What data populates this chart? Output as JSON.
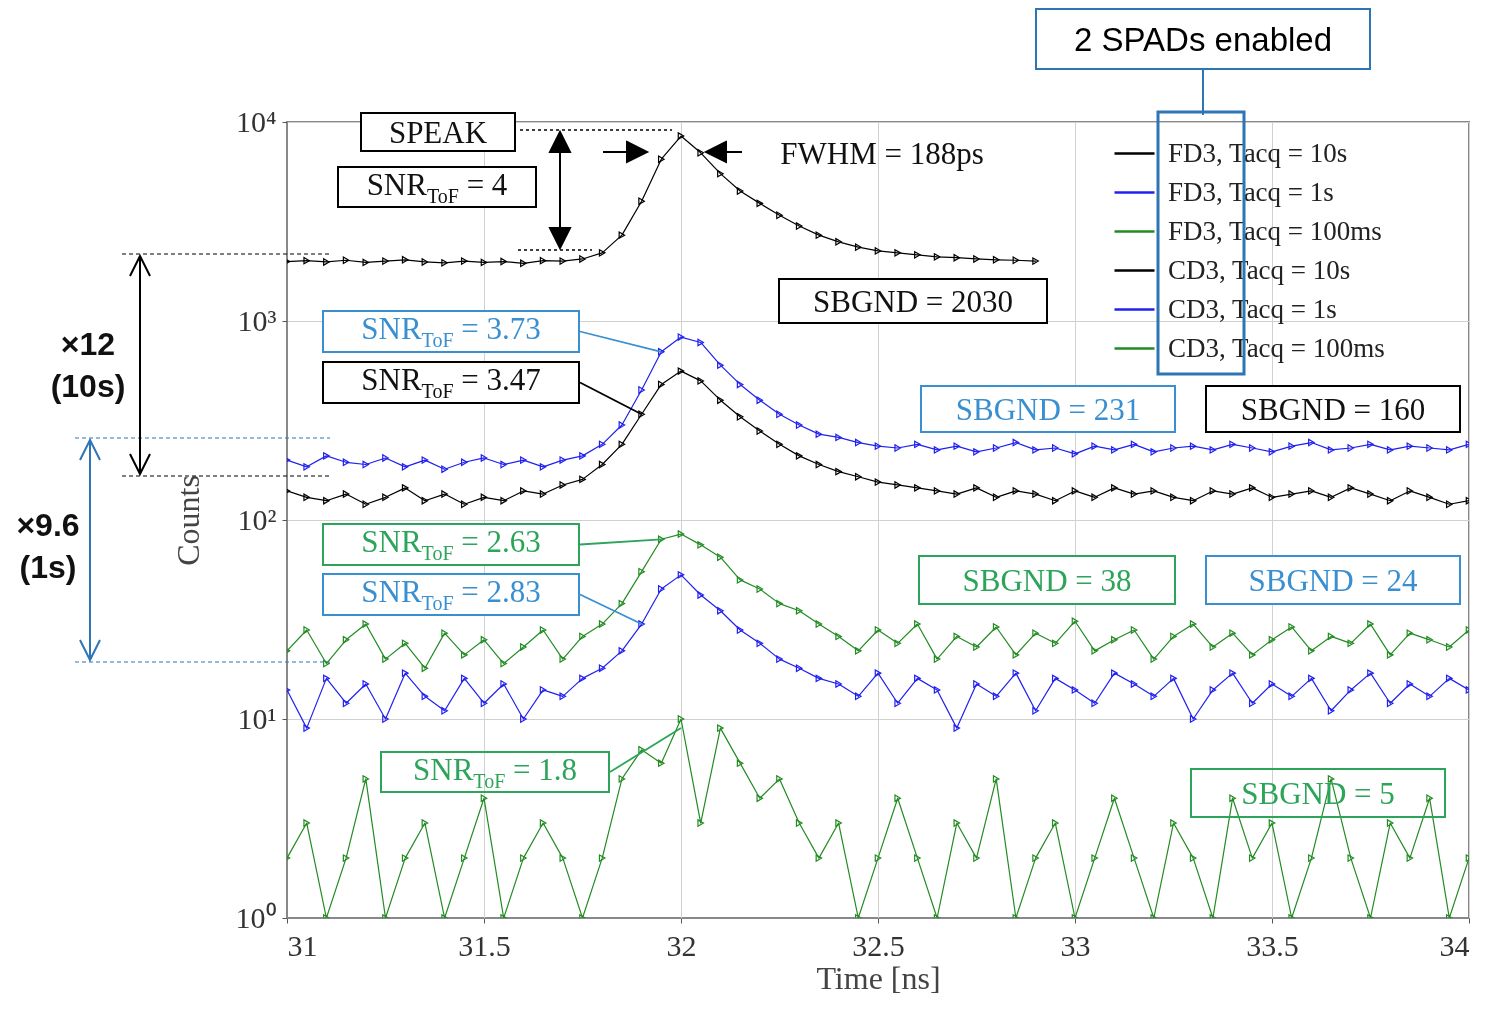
{
  "chart_data": {
    "type": "line",
    "xlabel": "Time [ns]",
    "ylabel": "Counts",
    "log": true,
    "grid": true,
    "legend": "top right",
    "marker": "triangle",
    "line_style": "solid",
    "xlim": [
      31,
      34
    ],
    "xticks": [
      31,
      31.5,
      32,
      32.5,
      33,
      33.5,
      34
    ],
    "ylim": [
      1,
      10000
    ],
    "yticks": [
      {
        "value": 1,
        "label": "10⁰"
      },
      {
        "value": 10,
        "label": "10¹"
      },
      {
        "value": 100,
        "label": "10²"
      },
      {
        "value": 1000,
        "label": "10³"
      },
      {
        "value": 10000,
        "label": "10⁴"
      }
    ],
    "x": [
      31,
      31.05,
      31.1,
      31.15,
      31.2,
      31.25,
      31.3,
      31.35,
      31.4,
      31.45,
      31.5,
      31.55,
      31.6,
      31.65,
      31.7,
      31.75,
      31.8,
      31.85,
      31.9,
      31.95,
      32,
      32.05,
      32.1,
      32.15,
      32.2,
      32.25,
      32.3,
      32.35,
      32.4,
      32.45,
      32.5,
      32.55,
      32.6,
      32.65,
      32.7,
      32.75,
      32.8,
      32.85,
      32.9,
      32.95,
      33,
      33.05,
      33.1,
      33.15,
      33.2,
      33.25,
      33.3,
      33.35,
      33.4,
      33.45,
      33.5,
      33.55,
      33.6,
      33.65,
      33.7,
      33.75,
      33.8,
      33.85,
      33.9,
      33.95,
      34
    ],
    "series": [
      {
        "name": "FD3, Tacq = 10s",
        "color": "#000000",
        "x": [
          31,
          31.05,
          31.1,
          31.15,
          31.2,
          31.25,
          31.3,
          31.35,
          31.4,
          31.45,
          31.5,
          31.55,
          31.6,
          31.65,
          31.7,
          31.75,
          31.8,
          31.85,
          31.9,
          31.95,
          32,
          32.05,
          32.1,
          32.15,
          32.2,
          32.25,
          32.3,
          32.35,
          32.4,
          32.45,
          32.5,
          32.55,
          32.6,
          32.65,
          32.7,
          32.75,
          32.8,
          32.85,
          32.9
        ],
        "values": [
          1990,
          2010,
          1980,
          2020,
          1970,
          2000,
          2030,
          1980,
          1960,
          2000,
          1970,
          1990,
          1950,
          2010,
          2000,
          2050,
          2200,
          2700,
          4000,
          6500,
          8500,
          7000,
          5500,
          4500,
          3900,
          3400,
          3000,
          2700,
          2500,
          2350,
          2250,
          2200,
          2150,
          2100,
          2080,
          2050,
          2030,
          2020,
          2000
        ]
      },
      {
        "name": "FD3, Tacq = 1s",
        "color": "#2020f0",
        "values": [
          200,
          185,
          210,
          195,
          190,
          205,
          185,
          200,
          180,
          195,
          205,
          190,
          200,
          185,
          200,
          210,
          240,
          300,
          450,
          700,
          830,
          780,
          600,
          480,
          400,
          340,
          300,
          270,
          260,
          245,
          235,
          230,
          240,
          225,
          235,
          220,
          230,
          245,
          225,
          230,
          215,
          235,
          225,
          240,
          220,
          230,
          235,
          225,
          240,
          230,
          220,
          235,
          245,
          225,
          230,
          240,
          225,
          235,
          230,
          225,
          240
        ]
      },
      {
        "name": "FD3, Tacq = 100ms",
        "color": "#228b22",
        "values": [
          22,
          28,
          19,
          25,
          30,
          20,
          24,
          18,
          27,
          21,
          25,
          19,
          23,
          28,
          20,
          26,
          30,
          38,
          55,
          80,
          85,
          75,
          65,
          50,
          45,
          38,
          35,
          30,
          26,
          22,
          28,
          24,
          30,
          20,
          26,
          23,
          29,
          21,
          27,
          24,
          31,
          22,
          25,
          28,
          20,
          26,
          30,
          23,
          27,
          21,
          25,
          29,
          22,
          26,
          24,
          30,
          21,
          27,
          25,
          23,
          28
        ]
      },
      {
        "name": "CD3, Tacq = 10s",
        "color": "#000000",
        "values": [
          140,
          130,
          125,
          135,
          120,
          130,
          145,
          125,
          135,
          120,
          130,
          125,
          140,
          135,
          150,
          160,
          190,
          240,
          340,
          480,
          560,
          500,
          400,
          330,
          280,
          240,
          210,
          190,
          175,
          165,
          155,
          150,
          145,
          140,
          135,
          145,
          130,
          140,
          135,
          125,
          140,
          130,
          145,
          135,
          140,
          130,
          125,
          140,
          135,
          145,
          130,
          135,
          140,
          130,
          145,
          135,
          125,
          140,
          130,
          120,
          125
        ]
      },
      {
        "name": "CD3, Tacq = 1s",
        "color": "#2020f0",
        "values": [
          14,
          9,
          16,
          12,
          15,
          10,
          17,
          13,
          11,
          16,
          12,
          15,
          10,
          14,
          13,
          16,
          18,
          22,
          30,
          45,
          53,
          42,
          35,
          28,
          24,
          20,
          18,
          16,
          15,
          13,
          17,
          12,
          16,
          14,
          9,
          15,
          13,
          17,
          11,
          16,
          14,
          12,
          17,
          15,
          13,
          16,
          10,
          14,
          17,
          12,
          15,
          13,
          16,
          11,
          14,
          17,
          12,
          15,
          13,
          16,
          14
        ]
      },
      {
        "name": "CD3, Tacq = 100ms",
        "color": "#228b22",
        "values": [
          2,
          3,
          1,
          2,
          5,
          1,
          2,
          3,
          1,
          2,
          4,
          1,
          2,
          3,
          2,
          1,
          2,
          5,
          7,
          6,
          10,
          3,
          9,
          6,
          4,
          5,
          3,
          2,
          3,
          1,
          2,
          4,
          2,
          1,
          3,
          2,
          5,
          1,
          2,
          3,
          1,
          2,
          4,
          2,
          1,
          3,
          2,
          1,
          4,
          2,
          3,
          1,
          2,
          5,
          2,
          1,
          3,
          2,
          4,
          1,
          2
        ]
      }
    ],
    "annotations": [
      "2 SPADs enabled",
      "SPEAK",
      "SNR$_{ToF}$ = 4",
      "FWHM = 188ps",
      "SBGND = 2030",
      {
        "text": "SNR$_{ToF}$ = 3.73",
        "x": 31.95,
        "y": 700
      },
      {
        "text": "SNR$_{ToF}$ = 3.47",
        "x": 31.9,
        "y": 340
      },
      "SBGND = 231",
      "SBGND = 160",
      {
        "text": "SNR$_{ToF}$ = 2.63",
        "x": 31.95,
        "y": 80
      },
      {
        "text": "SNR$_{ToF}$ = 2.83",
        "x": 31.9,
        "y": 30
      },
      "SBGND = 38",
      "SBGND = 24",
      {
        "text": "SNR$_{ToF}$ = 1.8",
        "x": 32,
        "y": 9
      },
      "SBGND = 5",
      "×12 (10s)",
      "×9.6 (1s)"
    ]
  }
}
